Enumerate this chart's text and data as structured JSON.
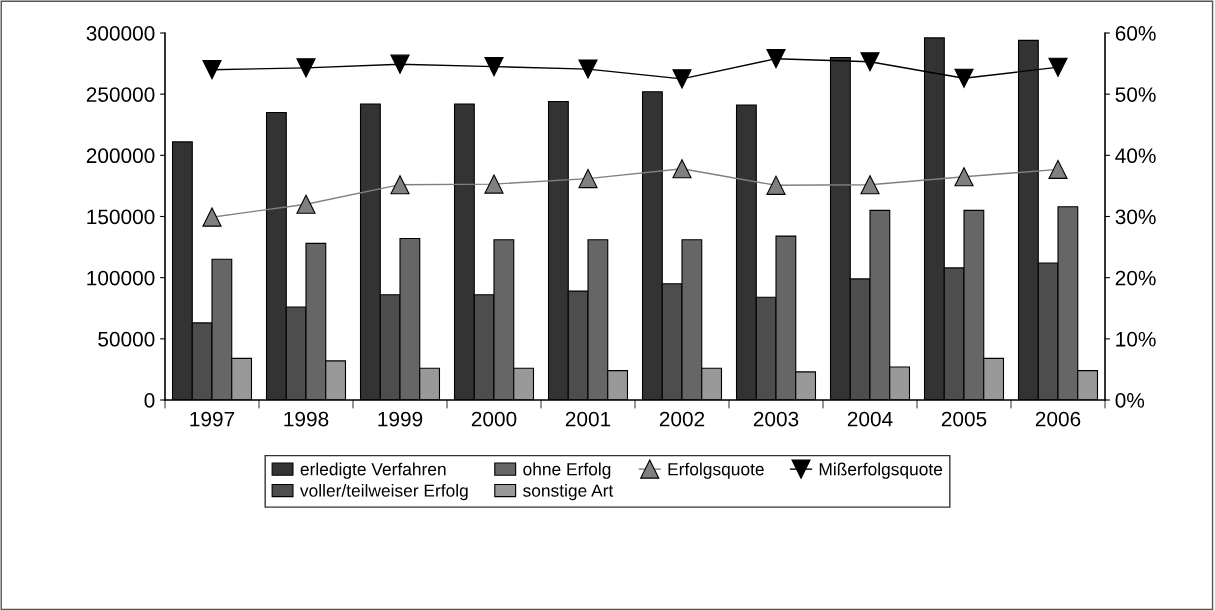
{
  "chart_data": {
    "type": "bar",
    "categories": [
      "1997",
      "1998",
      "1999",
      "2000",
      "2001",
      "2002",
      "2003",
      "2004",
      "2005",
      "2006"
    ],
    "series": [
      {
        "name": "erledigte Verfahren",
        "color": "#333333",
        "values": [
          211000,
          235000,
          242000,
          242000,
          244000,
          252000,
          241000,
          280000,
          296000,
          294000
        ]
      },
      {
        "name": "voller/teilweiser Erfolg",
        "color": "#4d4d4d",
        "values": [
          63000,
          76000,
          86000,
          86000,
          89000,
          95000,
          84000,
          99000,
          108000,
          112000
        ]
      },
      {
        "name": "ohne Erfolg",
        "color": "#666666",
        "values": [
          115000,
          128000,
          132000,
          131000,
          131000,
          131000,
          134000,
          155000,
          155000,
          158000
        ]
      },
      {
        "name": "sonstige Art",
        "color": "#999999",
        "values": [
          34000,
          32000,
          26000,
          26000,
          24000,
          26000,
          23000,
          27000,
          34000,
          24000
        ]
      },
      {
        "name": "Erfolgsquote",
        "type": "line",
        "axis": "y2",
        "marker": "triangle",
        "color": "#808080",
        "values": [
          29.9,
          32,
          35.2,
          35.3,
          36.2,
          37.8,
          35.1,
          35.2,
          36.5,
          37.7
        ]
      },
      {
        "name": "Mißerfolgsquote",
        "type": "line",
        "axis": "y2",
        "marker": "triangle-down",
        "color": "#000000",
        "values": [
          54,
          54.3,
          54.9,
          54.5,
          54.1,
          52.5,
          55.8,
          55.3,
          52.6,
          54.4
        ]
      }
    ],
    "ylim": [
      0,
      300000
    ],
    "yticks": [
      0,
      50000,
      100000,
      150000,
      200000,
      250000,
      300000
    ],
    "y2lim": [
      0,
      60
    ],
    "y2ticks": [
      {
        "value": 0,
        "label": "0%"
      },
      {
        "value": 10,
        "label": "10%"
      },
      {
        "value": 20,
        "label": "20%"
      },
      {
        "value": 30,
        "label": "30%"
      },
      {
        "value": 40,
        "label": "40%"
      },
      {
        "value": 50,
        "label": "50%"
      },
      {
        "value": 60,
        "label": "60%"
      }
    ],
    "grid": false,
    "legend": "bottom"
  }
}
